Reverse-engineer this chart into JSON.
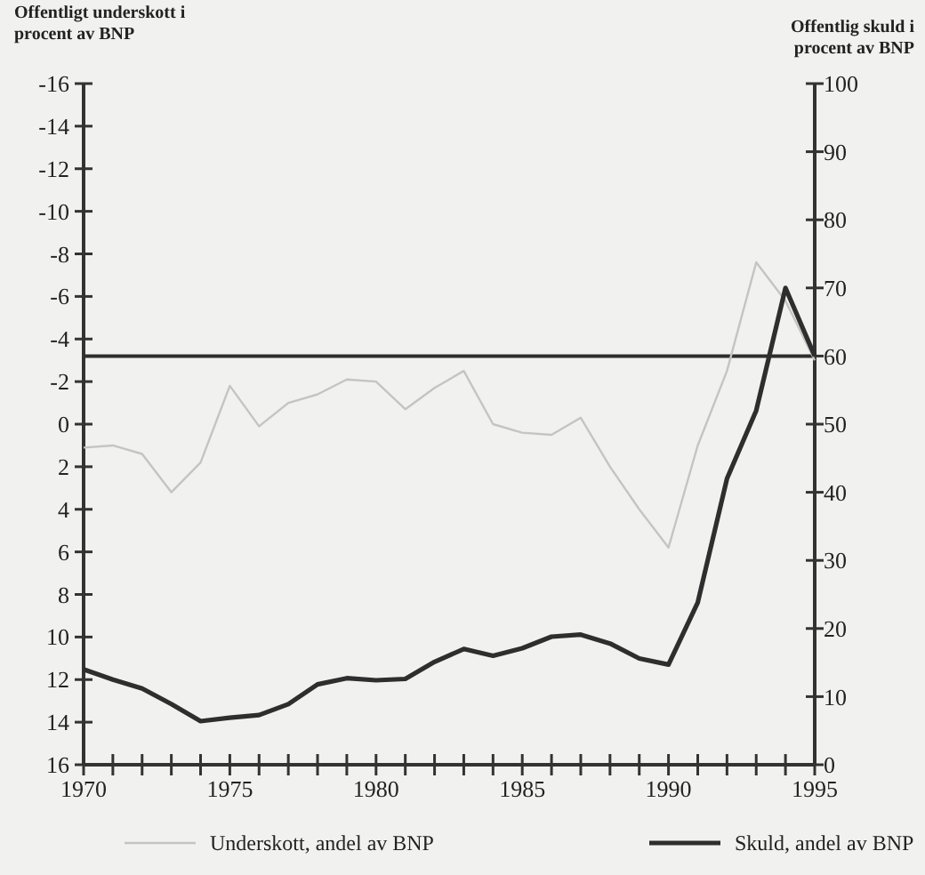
{
  "chart_data": {
    "type": "line",
    "ylabel": "Offentligt underskott i procent av BNP",
    "y2label": "Offentlig skuld i procent av BNP",
    "x": [
      1970,
      1971,
      1972,
      1973,
      1974,
      1975,
      1976,
      1977,
      1978,
      1979,
      1980,
      1981,
      1982,
      1983,
      1984,
      1985,
      1986,
      1987,
      1988,
      1989,
      1990,
      1991,
      1992,
      1993,
      1994,
      1995
    ],
    "series": [
      {
        "name": "Underskott, andel av BNP",
        "color": "#c4c4c4",
        "values": [
          1.1,
          1.0,
          1.4,
          3.2,
          1.8,
          -1.8,
          0.1,
          -1.0,
          -1.4,
          -2.1,
          -2.0,
          -0.7,
          -1.7,
          -2.5,
          0.0,
          0.4,
          0.5,
          -0.3,
          2.0,
          4.0,
          5.8,
          1.0,
          -2.5,
          -7.6,
          -5.8,
          -3.0
        ]
      },
      {
        "name": "Skuld, andel av BNP",
        "color": "#2e2e2e",
        "axis": "y2",
        "values": [
          14,
          12.5,
          11.2,
          8.9,
          6.4,
          6.9,
          7.3,
          8.9,
          11.8,
          12.7,
          12.4,
          12.6,
          15.1,
          17.0,
          16.0,
          17.1,
          18.8,
          19.1,
          17.8,
          15.6,
          14.7,
          23.8,
          42,
          52,
          70,
          60
        ]
      }
    ],
    "xlim": [
      1970,
      1995
    ],
    "xticks": [
      1970,
      {
        "value": 1971,
        "label": null
      },
      {
        "value": 1972,
        "label": null
      },
      {
        "value": 1973,
        "label": null
      },
      {
        "value": 1974,
        "label": null
      },
      1975,
      {
        "value": 1976,
        "label": null
      },
      {
        "value": 1977,
        "label": null
      },
      {
        "value": 1978,
        "label": null
      },
      {
        "value": 1979,
        "label": null
      },
      1980,
      {
        "value": 1981,
        "label": null
      },
      {
        "value": 1982,
        "label": null
      },
      {
        "value": 1983,
        "label": null
      },
      {
        "value": 1984,
        "label": null
      },
      1985,
      {
        "value": 1986,
        "label": null
      },
      {
        "value": 1987,
        "label": null
      },
      {
        "value": 1988,
        "label": null
      },
      {
        "value": 1989,
        "label": null
      },
      1990,
      {
        "value": 1991,
        "label": null
      },
      {
        "value": 1992,
        "label": null
      },
      {
        "value": 1993,
        "label": null
      },
      {
        "value": 1994,
        "label": null
      },
      1995
    ],
    "ylim": [
      16,
      -16
    ],
    "yticks": [
      -16,
      -14,
      -12,
      -10,
      -8,
      -6,
      -4,
      -2,
      0,
      2,
      4,
      6,
      8,
      10,
      12,
      14,
      16
    ],
    "y2lim": [
      0,
      100
    ],
    "y2ticks": [
      0,
      10,
      20,
      30,
      40,
      50,
      60,
      70,
      80,
      90,
      100
    ],
    "ref_lines": [
      {
        "axis": "y2",
        "value": 60,
        "color": "#2e2e2e"
      }
    ],
    "grid": false,
    "legend": "bottom",
    "marker": "none",
    "line_style": "solid"
  }
}
